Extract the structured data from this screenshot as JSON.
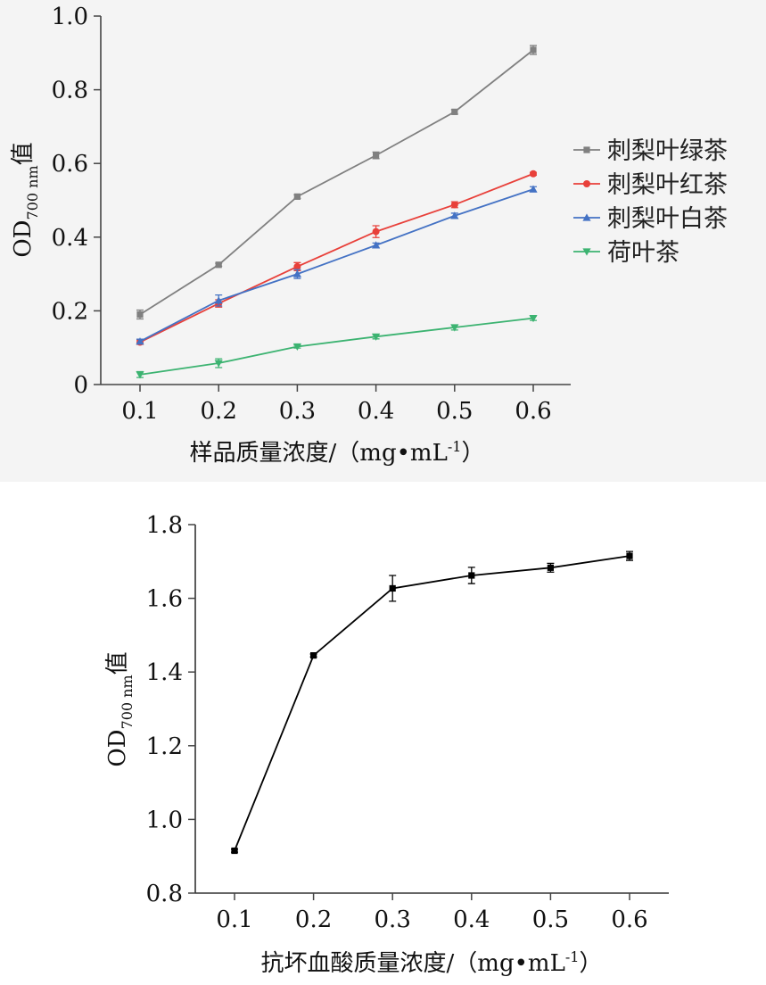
{
  "chart_data": [
    {
      "type": "line",
      "title": "",
      "xlabel": "样品质量浓度/（mg•mL",
      "xlabel_sup": "-1",
      "xlabel_tail": "）",
      "ylabel_main": "OD",
      "ylabel_sub": "700 nm",
      "ylabel_tail": "值",
      "x": [
        0.1,
        0.2,
        0.3,
        0.4,
        0.5,
        0.6
      ],
      "x_ticks": [
        "0.1",
        "0.2",
        "0.3",
        "0.4",
        "0.5",
        "0.6"
      ],
      "y_ticks": [
        "0",
        "0.2",
        "0.4",
        "0.6",
        "0.8",
        "1.0"
      ],
      "ylim": [
        0,
        1.0
      ],
      "legend_position": "right",
      "series": [
        {
          "name": "刺梨叶绿茶",
          "color": "#808080",
          "marker": "square",
          "values": [
            0.19,
            0.325,
            0.51,
            0.622,
            0.74,
            0.908
          ],
          "errors": [
            0.012,
            0.004,
            0.005,
            0.009,
            0.006,
            0.012
          ]
        },
        {
          "name": "刺梨叶红茶",
          "color": "#e8403a",
          "marker": "circle",
          "values": [
            0.115,
            0.22,
            0.32,
            0.415,
            0.488,
            0.572
          ],
          "errors": [
            0.006,
            0.01,
            0.011,
            0.016,
            0.008,
            0.004
          ]
        },
        {
          "name": "刺梨叶白茶",
          "color": "#4472c4",
          "marker": "triangle",
          "values": [
            0.117,
            0.228,
            0.3,
            0.378,
            0.458,
            0.53
          ],
          "errors": [
            0.006,
            0.015,
            0.012,
            0.006,
            0.007,
            0.007
          ]
        },
        {
          "name": "荷叶茶",
          "color": "#3cb371",
          "marker": "down-triangle",
          "values": [
            0.027,
            0.058,
            0.103,
            0.13,
            0.155,
            0.18
          ],
          "errors": [
            0.008,
            0.012,
            0.004,
            0.006,
            0.007,
            0.006
          ]
        }
      ]
    },
    {
      "type": "line",
      "title": "",
      "xlabel": "抗坏血酸质量浓度/（mg•mL",
      "xlabel_sup": "-1",
      "xlabel_tail": "）",
      "ylabel_main": "OD",
      "ylabel_sub": "700 nm",
      "ylabel_tail": "值",
      "x": [
        0.1,
        0.2,
        0.3,
        0.4,
        0.5,
        0.6
      ],
      "x_ticks": [
        "0.1",
        "0.2",
        "0.3",
        "0.4",
        "0.5",
        "0.6"
      ],
      "y_ticks": [
        "0.8",
        "1.0",
        "1.2",
        "1.4",
        "1.6",
        "1.8"
      ],
      "ylim": [
        0.8,
        1.8
      ],
      "series": [
        {
          "name": "抗坏血酸",
          "color": "#000000",
          "marker": "square",
          "values": [
            0.915,
            1.445,
            1.627,
            1.662,
            1.683,
            1.715
          ],
          "errors": [
            0.004,
            0.004,
            0.035,
            0.022,
            0.012,
            0.012
          ]
        }
      ]
    }
  ]
}
